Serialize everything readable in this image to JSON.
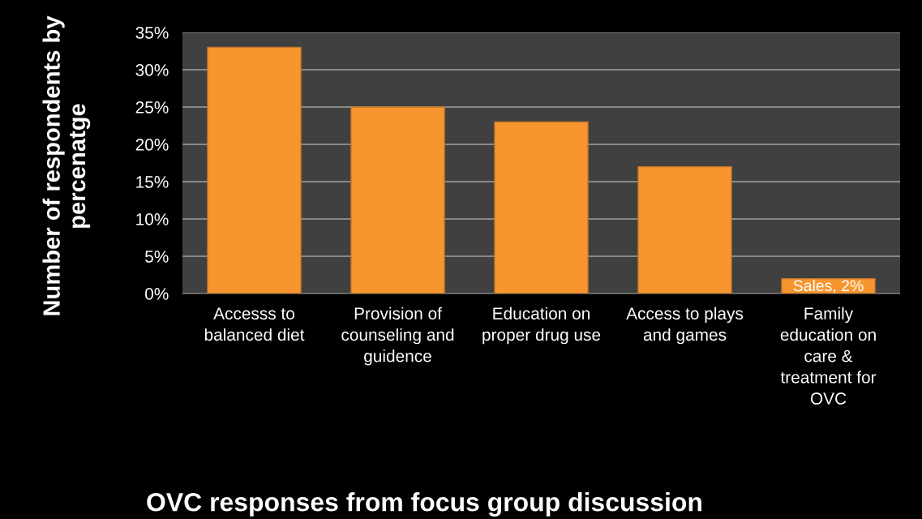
{
  "chart_data": {
    "type": "bar",
    "xlabel": "OVC responses from focus group discussion",
    "ylabel": "Number of respondents by\npercenatge",
    "categories": [
      "Accesss to\nbalanced diet",
      "Provision of\ncounseling and\nguidence",
      "Education on\nproper drug use",
      "Access to plays\nand games",
      "Family\neducation on\ncare &\ntreatment for\nOVC"
    ],
    "values": [
      33,
      25,
      23,
      17,
      2
    ],
    "value_labels": [
      null,
      null,
      null,
      null,
      "Sales, 2%"
    ],
    "color": "#f7962f",
    "ylim": [
      0,
      35
    ],
    "yticks": [
      {
        "value": 0,
        "label": "0%"
      },
      {
        "value": 5,
        "label": "5%"
      },
      {
        "value": 10,
        "label": "10%"
      },
      {
        "value": 15,
        "label": "15%"
      },
      {
        "value": 20,
        "label": "20%"
      },
      {
        "value": 25,
        "label": "25%"
      },
      {
        "value": 30,
        "label": "30%"
      },
      {
        "value": 35,
        "label": "35%"
      }
    ],
    "grid": "y"
  }
}
